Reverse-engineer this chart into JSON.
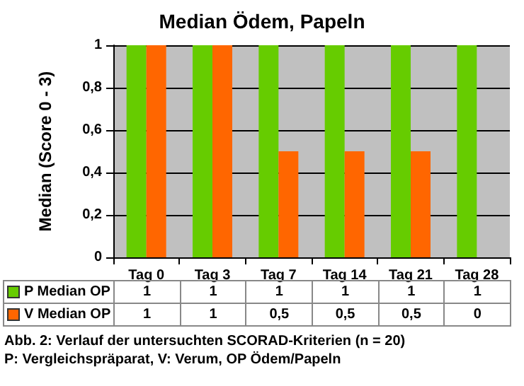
{
  "chart_data": {
    "type": "bar",
    "title": "Median Ödem, Papeln",
    "ylabel": "Median (Score 0 - 3)",
    "categories": [
      "Tag 0",
      "Tag 3",
      "Tag 7",
      "Tag 14",
      "Tag 21",
      "Tag 28"
    ],
    "series": [
      {
        "name": "P Median OP",
        "color": "#66cc00",
        "values": [
          1,
          1,
          1,
          1,
          1,
          1
        ],
        "value_labels": [
          "1",
          "1",
          "1",
          "1",
          "1",
          "1"
        ]
      },
      {
        "name": "V Median OP",
        "color": "#ff6600",
        "values": [
          1,
          1,
          0.5,
          0.5,
          0.5,
          0
        ],
        "value_labels": [
          "1",
          "1",
          "0,5",
          "0,5",
          "0,5",
          "0"
        ]
      }
    ],
    "ylim": [
      0,
      1
    ],
    "yticks": [
      0,
      {
        "value": 0.2,
        "label": "0,2"
      },
      {
        "value": 0.4,
        "label": "0,4"
      },
      {
        "value": 0.6,
        "label": "0,6"
      },
      {
        "value": 0.8,
        "label": "0,8"
      },
      1
    ],
    "grid": "y",
    "legend": "bottom",
    "annotations": [
      "Abb. 2: Verlauf der untersuchten SCORAD-Kriterien (n = 20)",
      "P: Vergleichspräparat, V: Verum, OP Ödem/Papeln"
    ]
  }
}
